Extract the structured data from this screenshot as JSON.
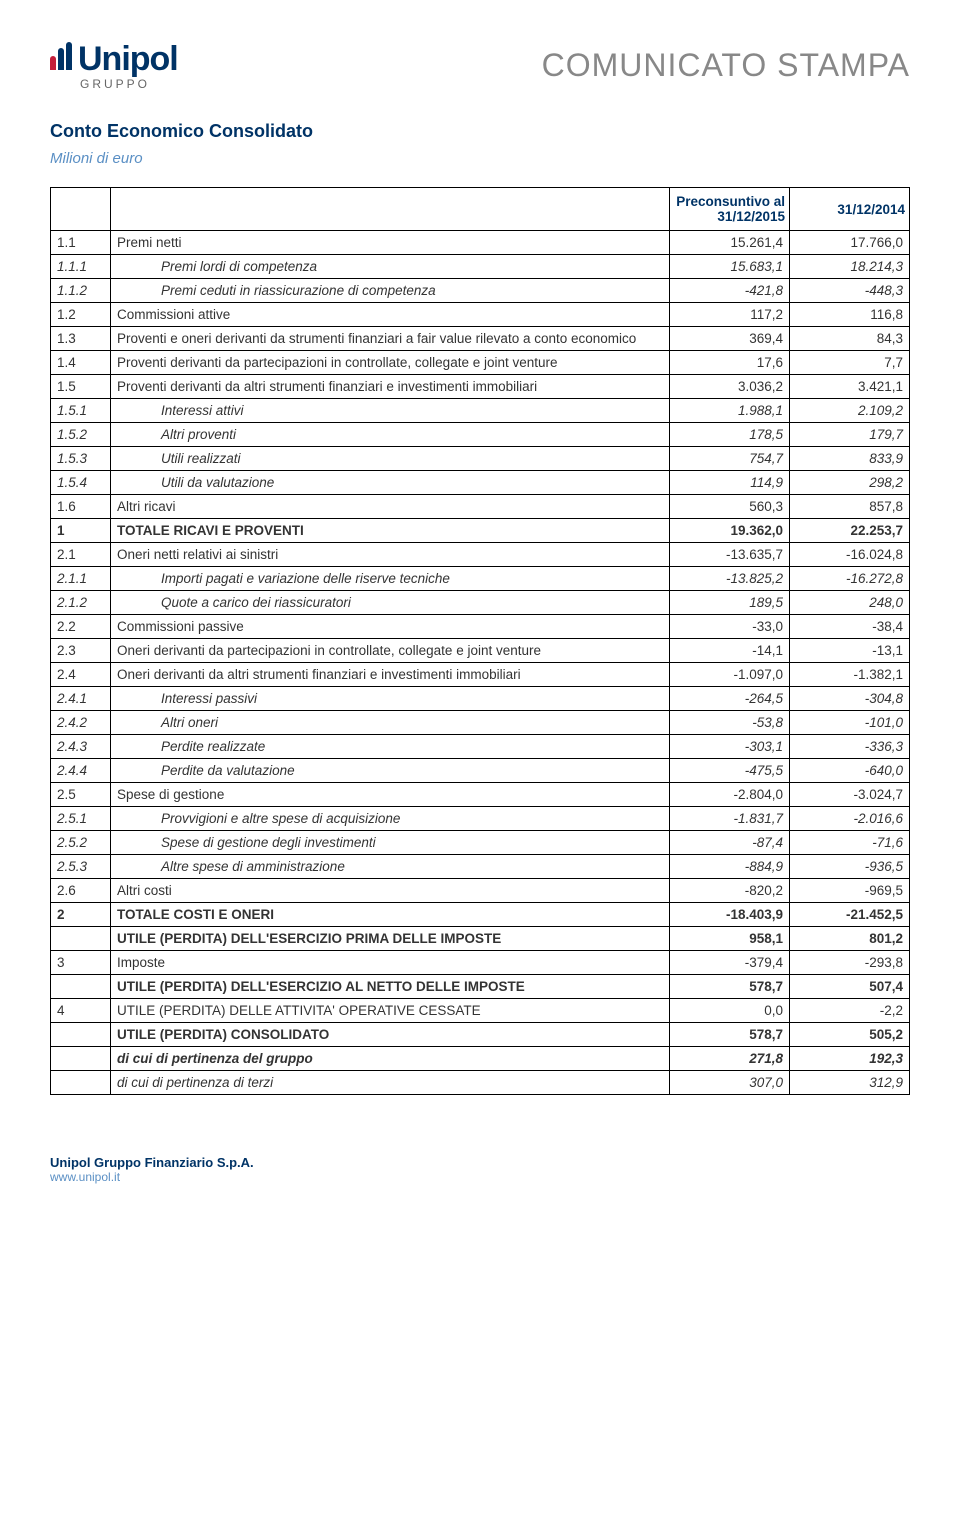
{
  "brand": {
    "name": "Unipol",
    "sub": "GRUPPO"
  },
  "banner": "COMUNICATO STAMPA",
  "title": "Conto Economico Consolidato",
  "subtitle": "Milioni di euro",
  "table": {
    "headers": {
      "col1": "Preconsuntivo al 31/12/2015",
      "col2": "31/12/2014"
    },
    "header_color": "#003366",
    "border_color": "#000000",
    "fontsize": 13.5,
    "col_widths": {
      "code": 60,
      "val": 120
    },
    "rows": [
      {
        "code": "1.1",
        "desc": "Premi netti",
        "v1": "15.261,4",
        "v2": "17.766,0",
        "style": ""
      },
      {
        "code": "1.1.1",
        "desc": "Premi lordi di competenza",
        "v1": "15.683,1",
        "v2": "18.214,3",
        "style": "italic",
        "indent": 2
      },
      {
        "code": "1.1.2",
        "desc": "Premi ceduti in riassicurazione di competenza",
        "v1": "-421,8",
        "v2": "-448,3",
        "style": "italic",
        "indent": 2
      },
      {
        "code": "1.2",
        "desc": "Commissioni attive",
        "v1": "117,2",
        "v2": "116,8",
        "style": ""
      },
      {
        "code": "1.3",
        "desc": "Proventi e oneri derivanti da strumenti finanziari a fair value rilevato a conto economico",
        "v1": "369,4",
        "v2": "84,3",
        "style": ""
      },
      {
        "code": "1.4",
        "desc": "Proventi derivanti da partecipazioni in controllate, collegate e joint venture",
        "v1": "17,6",
        "v2": "7,7",
        "style": ""
      },
      {
        "code": "1.5",
        "desc": "Proventi derivanti da altri strumenti finanziari e investimenti immobiliari",
        "v1": "3.036,2",
        "v2": "3.421,1",
        "style": ""
      },
      {
        "code": "1.5.1",
        "desc": "Interessi attivi",
        "v1": "1.988,1",
        "v2": "2.109,2",
        "style": "italic",
        "indent": 2
      },
      {
        "code": "1.5.2",
        "desc": "Altri proventi",
        "v1": "178,5",
        "v2": "179,7",
        "style": "italic",
        "indent": 2
      },
      {
        "code": "1.5.3",
        "desc": "Utili realizzati",
        "v1": "754,7",
        "v2": "833,9",
        "style": "italic",
        "indent": 2
      },
      {
        "code": "1.5.4",
        "desc": "Utili da valutazione",
        "v1": "114,9",
        "v2": "298,2",
        "style": "italic",
        "indent": 2
      },
      {
        "code": "1.6",
        "desc": "Altri ricavi",
        "v1": "560,3",
        "v2": "857,8",
        "style": ""
      },
      {
        "code": "1",
        "desc": "TOTALE RICAVI E PROVENTI",
        "v1": "19.362,0",
        "v2": "22.253,7",
        "style": "bold"
      },
      {
        "code": "2.1",
        "desc": "Oneri netti relativi ai sinistri",
        "v1": "-13.635,7",
        "v2": "-16.024,8",
        "style": ""
      },
      {
        "code": "2.1.1",
        "desc": "Importi pagati e variazione delle riserve tecniche",
        "v1": "-13.825,2",
        "v2": "-16.272,8",
        "style": "italic",
        "indent": 2
      },
      {
        "code": "2.1.2",
        "desc": "Quote a carico dei riassicuratori",
        "v1": "189,5",
        "v2": "248,0",
        "style": "italic",
        "indent": 2
      },
      {
        "code": "2.2",
        "desc": "Commissioni passive",
        "v1": "-33,0",
        "v2": "-38,4",
        "style": ""
      },
      {
        "code": "2.3",
        "desc": "Oneri derivanti da partecipazioni in controllate, collegate e joint venture",
        "v1": "-14,1",
        "v2": "-13,1",
        "style": ""
      },
      {
        "code": "2.4",
        "desc": "Oneri derivanti da altri strumenti finanziari e investimenti immobiliari",
        "v1": "-1.097,0",
        "v2": "-1.382,1",
        "style": ""
      },
      {
        "code": "2.4.1",
        "desc": "Interessi passivi",
        "v1": "-264,5",
        "v2": "-304,8",
        "style": "italic",
        "indent": 2
      },
      {
        "code": "2.4.2",
        "desc": "Altri oneri",
        "v1": "-53,8",
        "v2": "-101,0",
        "style": "italic",
        "indent": 2
      },
      {
        "code": "2.4.3",
        "desc": "Perdite realizzate",
        "v1": "-303,1",
        "v2": "-336,3",
        "style": "italic",
        "indent": 2
      },
      {
        "code": "2.4.4",
        "desc": "Perdite da valutazione",
        "v1": "-475,5",
        "v2": "-640,0",
        "style": "italic",
        "indent": 2
      },
      {
        "code": "2.5",
        "desc": "Spese di gestione",
        "v1": "-2.804,0",
        "v2": "-3.024,7",
        "style": ""
      },
      {
        "code": "2.5.1",
        "desc": "Provvigioni e altre spese di acquisizione",
        "v1": "-1.831,7",
        "v2": "-2.016,6",
        "style": "italic",
        "indent": 2
      },
      {
        "code": "2.5.2",
        "desc": "Spese di gestione degli investimenti",
        "v1": "-87,4",
        "v2": "-71,6",
        "style": "italic",
        "indent": 2
      },
      {
        "code": "2.5.3",
        "desc": "Altre spese di amministrazione",
        "v1": "-884,9",
        "v2": "-936,5",
        "style": "italic",
        "indent": 2
      },
      {
        "code": "2.6",
        "desc": "Altri costi",
        "v1": "-820,2",
        "v2": "-969,5",
        "style": ""
      },
      {
        "code": "2",
        "desc": "TOTALE COSTI E ONERI",
        "v1": "-18.403,9",
        "v2": "-21.452,5",
        "style": "bold"
      },
      {
        "code": "",
        "desc": "UTILE (PERDITA) DELL'ESERCIZIO PRIMA DELLE IMPOSTE",
        "v1": "958,1",
        "v2": "801,2",
        "style": "bold"
      },
      {
        "code": "3",
        "desc": "Imposte",
        "v1": "-379,4",
        "v2": "-293,8",
        "style": ""
      },
      {
        "code": "",
        "desc": "UTILE (PERDITA) DELL'ESERCIZIO AL NETTO DELLE IMPOSTE",
        "v1": "578,7",
        "v2": "507,4",
        "style": "bold"
      },
      {
        "code": "4",
        "desc": "UTILE (PERDITA) DELLE ATTIVITA' OPERATIVE CESSATE",
        "v1": "0,0",
        "v2": "-2,2",
        "style": ""
      },
      {
        "code": "",
        "desc": "UTILE (PERDITA) CONSOLIDATO",
        "v1": "578,7",
        "v2": "505,2",
        "style": "bold"
      },
      {
        "code": "",
        "desc": "di cui di pertinenza del gruppo",
        "v1": "271,8",
        "v2": "192,3",
        "style": "bold italic"
      },
      {
        "code": "",
        "desc": "di cui di pertinenza di terzi",
        "v1": "307,0",
        "v2": "312,9",
        "style": "italic"
      }
    ]
  },
  "footer": {
    "company": "Unipol Gruppo Finanziario S.p.A.",
    "url": "www.unipol.it"
  }
}
